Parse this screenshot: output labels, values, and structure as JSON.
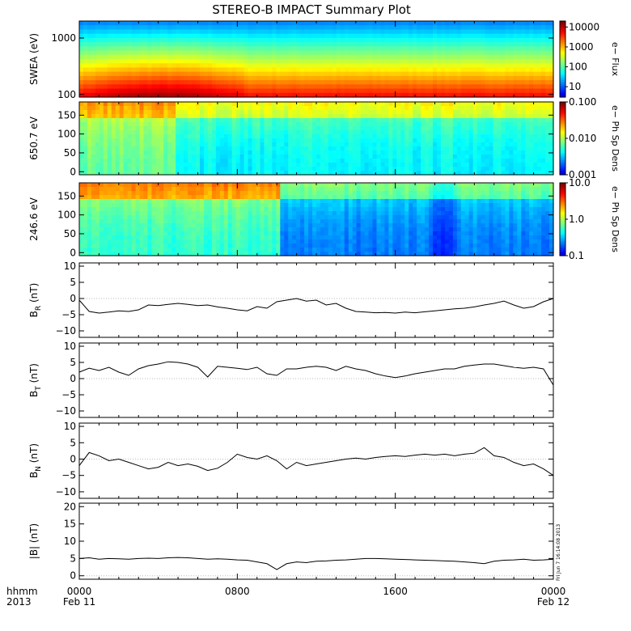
{
  "title": "STEREO-B IMPACT Summary Plot",
  "timestamp": "Fri Jun  7 16:14:08 2013",
  "colors": {
    "axis": "#000000",
    "trace": "#000000",
    "background": "#ffffff"
  },
  "x_axis": {
    "row1": [
      "hhmm",
      "0000",
      "0800",
      "1600",
      "0000"
    ],
    "row2": [
      "2013",
      "Feb 11",
      "",
      "",
      "Feb 12"
    ],
    "tick_values_hours": [
      0,
      8,
      16,
      24
    ]
  },
  "chart_data": [
    {
      "type": "heatmap",
      "panel": "swea",
      "ylabel": "SWEA (eV)",
      "ylog": true,
      "ylim": [
        90,
        2000
      ],
      "yticks": [
        100,
        1000
      ],
      "ytick_labels": [
        "100",
        "1000"
      ],
      "colorbar": {
        "label": "e− Flux",
        "log": true,
        "range": [
          3,
          20000
        ],
        "ticks": [
          10,
          100,
          1000,
          10000
        ],
        "tick_labels": [
          "10",
          "100",
          "1000",
          "10000"
        ]
      }
    },
    {
      "type": "heatmap",
      "panel": "pad650",
      "ylabel": "650.7 eV",
      "ylim": [
        -8,
        185
      ],
      "yticks": [
        0,
        50,
        100,
        150
      ],
      "ytick_labels": [
        "0",
        "50",
        "100",
        "150"
      ],
      "colorbar": {
        "label": "e− Ph Sp Dens",
        "log": true,
        "range": [
          0.001,
          0.1
        ],
        "ticks": [
          0.001,
          0.01,
          0.1
        ],
        "tick_labels": [
          "0.001",
          "0.010",
          "0.100"
        ]
      }
    },
    {
      "type": "heatmap",
      "panel": "pad246",
      "ylabel": "246.6 eV",
      "ylim": [
        -8,
        185
      ],
      "yticks": [
        0,
        50,
        100,
        150
      ],
      "ytick_labels": [
        "0",
        "50",
        "100",
        "150"
      ],
      "colorbar": {
        "label": "e− Ph Sp Dens",
        "log": true,
        "range": [
          0.1,
          10
        ],
        "ticks": [
          0.1,
          1,
          10
        ],
        "tick_labels": [
          "0.1",
          "1.0",
          "10.0"
        ]
      }
    },
    {
      "type": "line",
      "panel": "br",
      "ylabel": "B_R (nT)",
      "ylim": [
        -12,
        11
      ],
      "yticks": [
        -10,
        -5,
        0,
        5,
        10
      ],
      "ytick_labels": [
        "−10",
        "−5",
        "0",
        "5",
        "10"
      ],
      "x": [
        0,
        0.5,
        1,
        1.5,
        2,
        2.5,
        3,
        3.5,
        4,
        4.5,
        5,
        5.5,
        6,
        6.5,
        7,
        7.5,
        8,
        8.5,
        9,
        9.5,
        10,
        10.5,
        11,
        11.5,
        12,
        12.5,
        13,
        13.5,
        14,
        14.5,
        15,
        15.5,
        16,
        16.5,
        17,
        17.5,
        18,
        18.5,
        19,
        19.5,
        20,
        20.5,
        21,
        21.5,
        22,
        22.5,
        23,
        23.5,
        24
      ],
      "values": [
        -0.5,
        -4,
        -4.5,
        -4.2,
        -3.8,
        -4,
        -3.5,
        -2,
        -2.2,
        -1.8,
        -1.5,
        -1.8,
        -2.2,
        -2,
        -2.6,
        -3,
        -3.5,
        -3.8,
        -2.5,
        -3,
        -1,
        -0.5,
        0,
        -0.8,
        -0.5,
        -2,
        -1.5,
        -3,
        -4,
        -4.2,
        -4.4,
        -4.3,
        -4.5,
        -4.2,
        -4.4,
        -4.1,
        -3.8,
        -3.5,
        -3.2,
        -3,
        -2.6,
        -2,
        -1.5,
        -0.8,
        -2,
        -3,
        -2.5,
        -1,
        0
      ]
    },
    {
      "type": "line",
      "panel": "bt",
      "ylabel": "B_T (nT)",
      "ylim": [
        -12,
        11
      ],
      "yticks": [
        -10,
        -5,
        0,
        5,
        10
      ],
      "ytick_labels": [
        "−10",
        "−5",
        "0",
        "5",
        "10"
      ],
      "x": [
        0,
        0.5,
        1,
        1.5,
        2,
        2.5,
        3,
        3.5,
        4,
        4.5,
        5,
        5.5,
        6,
        6.5,
        7,
        7.5,
        8,
        8.5,
        9,
        9.5,
        10,
        10.5,
        11,
        11.5,
        12,
        12.5,
        13,
        13.5,
        14,
        14.5,
        15,
        15.5,
        16,
        16.5,
        17,
        17.5,
        18,
        18.5,
        19,
        19.5,
        20,
        20.5,
        21,
        21.5,
        22,
        22.5,
        23,
        23.5,
        24
      ],
      "values": [
        2,
        3.2,
        2.5,
        3.5,
        2,
        1,
        3,
        4,
        4.5,
        5.2,
        5,
        4.5,
        3.5,
        0.5,
        3.8,
        3.5,
        3.2,
        2.8,
        3.5,
        1.5,
        1,
        3,
        3,
        3.5,
        3.8,
        3.5,
        2.5,
        3.8,
        3,
        2.5,
        1.5,
        0.8,
        0.3,
        0.8,
        1.5,
        2,
        2.5,
        3,
        3,
        3.8,
        4.2,
        4.5,
        4.5,
        4,
        3.5,
        3.2,
        3.5,
        3,
        -2
      ]
    },
    {
      "type": "line",
      "panel": "bn",
      "ylabel": "B_N (nT)",
      "ylim": [
        -12,
        11
      ],
      "yticks": [
        -10,
        -5,
        0,
        5,
        10
      ],
      "ytick_labels": [
        "−10",
        "−5",
        "0",
        "5",
        "10"
      ],
      "x": [
        0,
        0.5,
        1,
        1.5,
        2,
        2.5,
        3,
        3.5,
        4,
        4.5,
        5,
        5.5,
        6,
        6.5,
        7,
        7.5,
        8,
        8.5,
        9,
        9.5,
        10,
        10.5,
        11,
        11.5,
        12,
        12.5,
        13,
        13.5,
        14,
        14.5,
        15,
        15.5,
        16,
        16.5,
        17,
        17.5,
        18,
        18.5,
        19,
        19.5,
        20,
        20.5,
        21,
        21.5,
        22,
        22.5,
        23,
        23.5,
        24
      ],
      "values": [
        -2,
        2,
        1,
        -0.5,
        0,
        -1,
        -2,
        -3,
        -2.5,
        -1,
        -2,
        -1.5,
        -2.2,
        -3.5,
        -2.8,
        -1,
        1.5,
        0.5,
        0,
        1,
        -0.5,
        -3,
        -1,
        -2,
        -1.5,
        -1,
        -0.5,
        0,
        0.3,
        0,
        0.5,
        0.8,
        1,
        0.8,
        1.2,
        1.5,
        1.2,
        1.5,
        1,
        1.5,
        1.8,
        3.5,
        1,
        0.5,
        -1,
        -2,
        -1.5,
        -3,
        -5
      ]
    },
    {
      "type": "line",
      "panel": "bmag",
      "ylabel": "|B| (nT)",
      "ylim": [
        -1,
        21
      ],
      "yticks": [
        0,
        5,
        10,
        15,
        20
      ],
      "ytick_labels": [
        "0",
        "5",
        "10",
        "15",
        "20"
      ],
      "x": [
        0,
        0.5,
        1,
        1.5,
        2,
        2.5,
        3,
        3.5,
        4,
        4.5,
        5,
        5.5,
        6,
        6.5,
        7,
        7.5,
        8,
        8.5,
        9,
        9.5,
        10,
        10.5,
        11,
        11.5,
        12,
        12.5,
        13,
        13.5,
        14,
        14.5,
        15,
        15.5,
        16,
        16.5,
        17,
        17.5,
        18,
        18.5,
        19,
        19.5,
        20,
        20.5,
        21,
        21.5,
        22,
        22.5,
        23,
        23.5,
        24
      ],
      "values": [
        5,
        5.2,
        4.8,
        5,
        4.9,
        4.8,
        5,
        5.1,
        5,
        5.2,
        5.3,
        5.2,
        5,
        4.8,
        4.9,
        4.8,
        4.6,
        4.5,
        4,
        3.5,
        1.8,
        3.5,
        4,
        3.8,
        4.2,
        4.3,
        4.5,
        4.6,
        4.8,
        5,
        5,
        4.9,
        4.8,
        4.7,
        4.6,
        4.5,
        4.4,
        4.3,
        4.2,
        4,
        3.8,
        3.5,
        4.2,
        4.5,
        4.6,
        4.8,
        4.5,
        4.6,
        4.8
      ]
    }
  ]
}
